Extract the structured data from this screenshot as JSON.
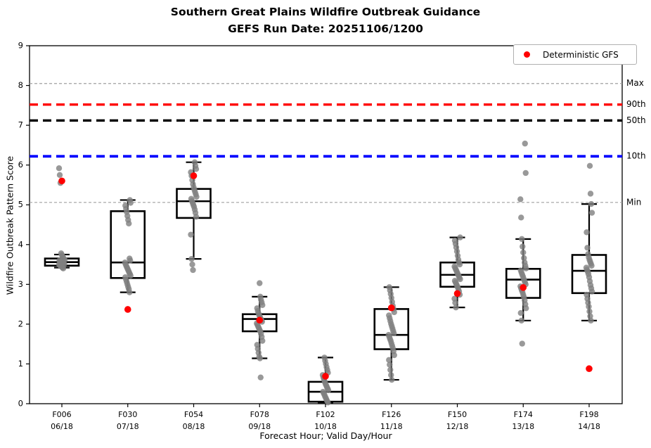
{
  "title": {
    "line1": "Southern Great Plains Wildfire Outbreak Guidance",
    "line2": "GEFS Run Date: 20251106/1200"
  },
  "axes": {
    "y_label": "Wildfire Outbreak Pattern Score",
    "x_label": "Forecast Hour; Valid Day/Hour",
    "y_ticks": [
      0,
      1,
      2,
      3,
      4,
      5,
      6,
      7,
      8,
      9
    ],
    "ylim": [
      0,
      9
    ]
  },
  "legend": {
    "label": "Deterministic GFS",
    "marker_color": "#ff0000"
  },
  "chart_data": {
    "type": "boxplot",
    "title": "Southern Great Plains Wildfire Outbreak Guidance — GEFS Run Date: 20251106/1200",
    "xlabel": "Forecast Hour; Valid Day/Hour",
    "ylabel": "Wildfire Outbreak Pattern Score",
    "ylim": [
      0,
      9
    ],
    "legend_position": "upper right",
    "grid": false,
    "colors": {
      "member": "#7f7f7f",
      "gfs": "#ff0000",
      "box": "#000000"
    },
    "thresholds": [
      {
        "label": "Max",
        "value": 8.05,
        "color": "#a0a0a0",
        "lw": 1.2,
        "dash": "4 3"
      },
      {
        "label": "90th",
        "value": 7.52,
        "color": "#ff0000",
        "lw": 3.4,
        "dash": "12 7"
      },
      {
        "label": "50th",
        "value": 7.12,
        "color": "#000000",
        "lw": 3.4,
        "dash": "12 7"
      },
      {
        "label": "10th",
        "value": 6.22,
        "color": "#0000ff",
        "lw": 3.8,
        "dash": "12 7"
      },
      {
        "label": "Min",
        "value": 5.06,
        "color": "#a0a0a0",
        "lw": 1.2,
        "dash": "4 3"
      }
    ],
    "categories": [
      "F006",
      "F030",
      "F054",
      "F078",
      "F102",
      "F126",
      "F150",
      "F174",
      "F198"
    ],
    "valid_labels": [
      "06/18",
      "07/18",
      "08/18",
      "09/18",
      "10/18",
      "11/18",
      "12/18",
      "13/18",
      "14/18"
    ],
    "boxes": [
      {
        "hour": "F006",
        "valid": "06/18",
        "whisker_low": 3.42,
        "q1": 3.47,
        "median": 3.56,
        "q3": 3.65,
        "whisker_high": 3.75,
        "gfs": 5.6,
        "members": [
          5.92,
          5.75,
          5.55,
          3.78,
          3.74,
          3.7,
          3.67,
          3.64,
          3.62,
          3.6,
          3.58,
          3.57,
          3.56,
          3.55,
          3.54,
          3.52,
          3.51,
          3.5,
          3.48,
          3.47,
          3.45,
          3.44,
          3.42,
          3.4
        ]
      },
      {
        "hour": "F030",
        "valid": "07/18",
        "whisker_low": 2.8,
        "q1": 3.16,
        "median": 3.55,
        "q3": 4.84,
        "whisker_high": 5.12,
        "gfs": 2.37,
        "members": [
          5.12,
          5.05,
          4.98,
          4.9,
          4.82,
          4.72,
          4.62,
          4.53,
          3.65,
          3.6,
          3.55,
          3.5,
          3.46,
          3.42,
          3.38,
          3.34,
          3.3,
          3.26,
          3.22,
          3.18,
          3.12,
          3.06,
          3.0,
          2.94,
          2.88,
          2.8
        ]
      },
      {
        "hour": "F054",
        "valid": "08/18",
        "whisker_low": 3.64,
        "q1": 4.67,
        "median": 5.09,
        "q3": 5.4,
        "whisker_high": 6.07,
        "gfs": 5.73,
        "members": [
          6.07,
          5.98,
          5.9,
          5.82,
          5.73,
          5.62,
          5.52,
          5.44,
          5.38,
          5.32,
          5.26,
          5.2,
          5.15,
          5.1,
          5.05,
          5.0,
          4.95,
          4.88,
          4.8,
          4.7,
          4.25,
          3.64,
          3.5,
          3.36
        ]
      },
      {
        "hour": "F078",
        "valid": "09/18",
        "whisker_low": 1.14,
        "q1": 1.82,
        "median": 2.13,
        "q3": 2.25,
        "whisker_high": 2.69,
        "gfs": 2.1,
        "members": [
          3.03,
          2.69,
          2.62,
          2.55,
          2.48,
          2.4,
          2.33,
          2.27,
          2.22,
          2.18,
          2.14,
          2.1,
          2.06,
          2.02,
          1.98,
          1.94,
          1.9,
          1.86,
          1.82,
          1.76,
          1.68,
          1.58,
          1.48,
          1.38,
          1.28,
          1.18,
          1.14,
          0.66
        ]
      },
      {
        "hour": "F102",
        "valid": "10/18",
        "whisker_low": 0.03,
        "q1": 0.05,
        "median": 0.3,
        "q3": 0.55,
        "whisker_high": 1.16,
        "gfs": 0.69,
        "members": [
          1.16,
          1.08,
          1.0,
          0.92,
          0.85,
          0.78,
          0.72,
          0.66,
          0.6,
          0.55,
          0.5,
          0.46,
          0.42,
          0.38,
          0.34,
          0.3,
          0.26,
          0.22,
          0.18,
          0.14,
          0.1,
          0.06,
          0.03
        ]
      },
      {
        "hour": "F126",
        "valid": "11/18",
        "whisker_low": 0.6,
        "q1": 1.37,
        "median": 1.73,
        "q3": 2.38,
        "whisker_high": 2.93,
        "gfs": 2.41,
        "members": [
          2.93,
          2.85,
          2.76,
          2.66,
          2.56,
          2.46,
          2.38,
          2.3,
          2.22,
          2.15,
          2.08,
          2.01,
          1.95,
          1.89,
          1.83,
          1.77,
          1.73,
          1.68,
          1.63,
          1.58,
          1.52,
          1.46,
          1.4,
          1.32,
          1.22,
          1.1,
          0.98,
          0.85,
          0.72,
          0.6
        ]
      },
      {
        "hour": "F150",
        "valid": "12/18",
        "whisker_low": 2.42,
        "q1": 2.94,
        "median": 3.24,
        "q3": 3.55,
        "whisker_high": 4.18,
        "gfs": 2.77,
        "members": [
          4.18,
          4.1,
          4.02,
          3.93,
          3.83,
          3.72,
          3.62,
          3.55,
          3.5,
          3.45,
          3.41,
          3.37,
          3.33,
          3.29,
          3.25,
          3.21,
          3.17,
          3.13,
          3.09,
          3.05,
          3.01,
          2.97,
          2.93,
          2.88,
          2.82,
          2.74,
          2.64,
          2.54,
          2.42
        ]
      },
      {
        "hour": "F174",
        "valid": "13/18",
        "whisker_low": 2.09,
        "q1": 2.66,
        "median": 3.12,
        "q3": 3.39,
        "whisker_high": 4.14,
        "gfs": 2.92,
        "members": [
          6.54,
          5.8,
          5.14,
          4.68,
          4.14,
          3.95,
          3.8,
          3.66,
          3.55,
          3.47,
          3.4,
          3.35,
          3.3,
          3.25,
          3.2,
          3.15,
          3.1,
          3.05,
          3.0,
          2.95,
          2.9,
          2.85,
          2.8,
          2.74,
          2.68,
          2.6,
          2.5,
          2.4,
          2.28,
          2.09,
          1.51
        ]
      },
      {
        "hour": "F198",
        "valid": "14/18",
        "whisker_low": 2.09,
        "q1": 2.78,
        "median": 3.34,
        "q3": 3.74,
        "whisker_high": 5.02,
        "gfs": 0.88,
        "members": [
          5.98,
          5.28,
          5.02,
          4.8,
          4.31,
          3.92,
          3.76,
          3.68,
          3.62,
          3.57,
          3.52,
          3.47,
          3.42,
          3.37,
          3.32,
          3.26,
          3.18,
          3.08,
          2.98,
          2.9,
          2.82,
          2.74,
          2.64,
          2.54,
          2.44,
          2.32,
          2.2,
          2.09
        ]
      }
    ]
  }
}
